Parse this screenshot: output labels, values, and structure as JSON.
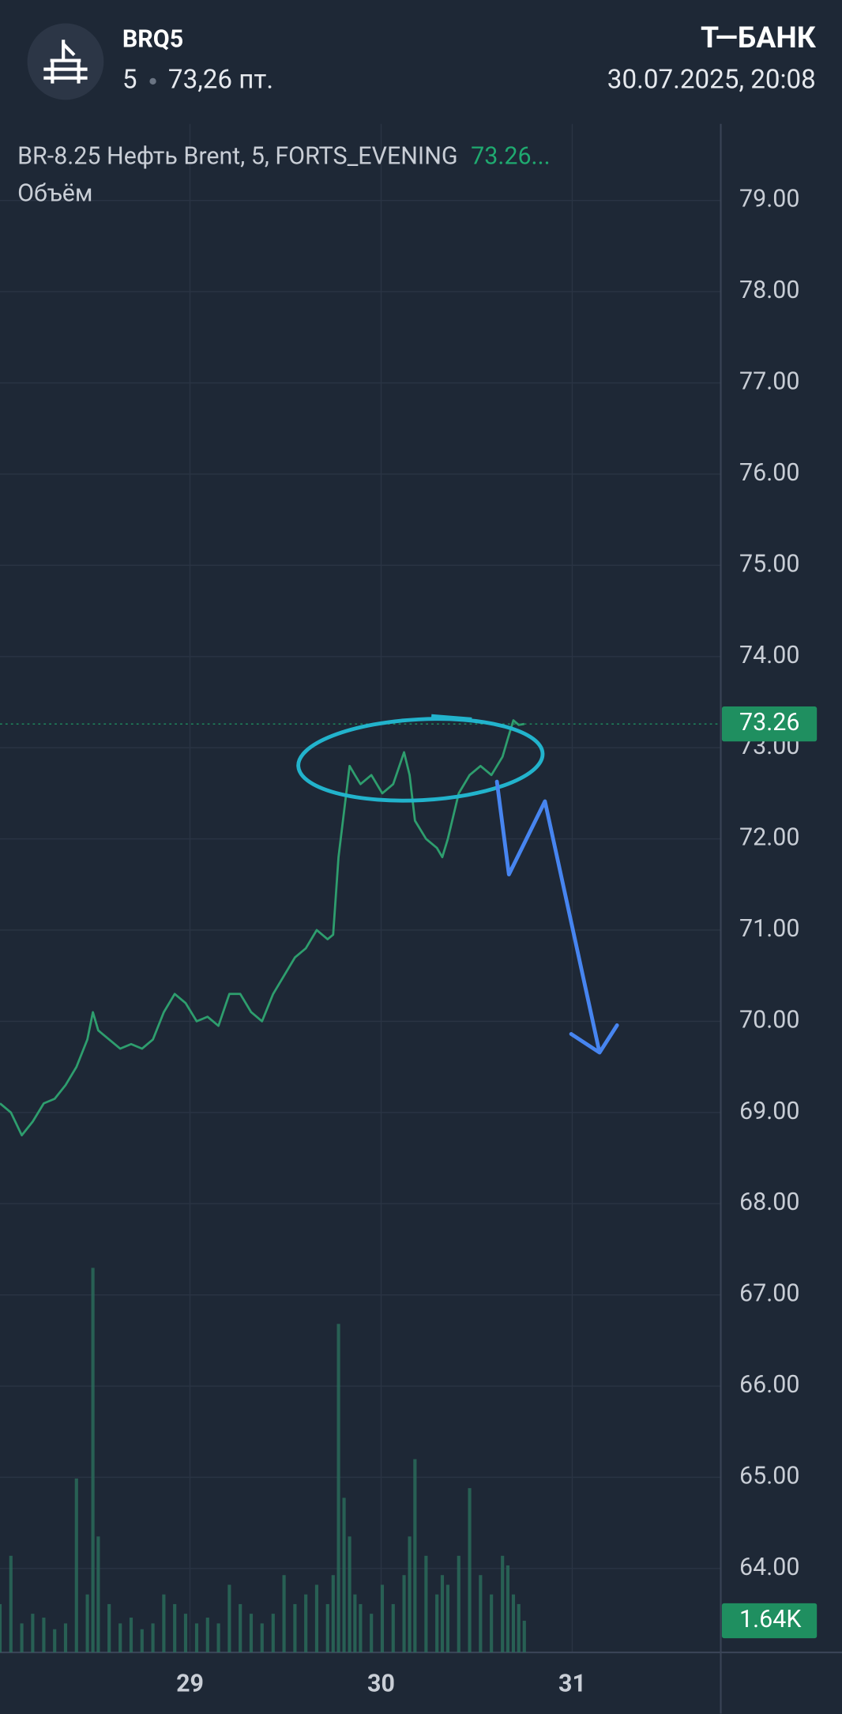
{
  "header": {
    "ticker": "BRQ5",
    "interval": "5",
    "price": "73,26 пт.",
    "brand": "Т—БАНК",
    "datetime": "30.07.2025, 20:08"
  },
  "chart_data": {
    "type": "line",
    "legend_title": "BR-8.25 Нефть Brent, 5, FORTS_EVENING",
    "legend_value": "73.26...",
    "volume_title": "Объём",
    "x": [
      28.006,
      28.063,
      28.12,
      28.177,
      28.235,
      28.292,
      28.349,
      28.406,
      28.463,
      28.492,
      28.52,
      28.577,
      28.635,
      28.692,
      28.749,
      28.806,
      28.863,
      28.92,
      28.977,
      29.035,
      29.092,
      29.149,
      29.206,
      29.263,
      29.32,
      29.377,
      29.435,
      29.492,
      29.549,
      29.606,
      29.663,
      29.72,
      29.749,
      29.777,
      29.806,
      29.835,
      29.863,
      29.892,
      29.949,
      30.006,
      30.063,
      30.12,
      30.149,
      30.177,
      30.235,
      30.292,
      30.32,
      30.349,
      30.406,
      30.463,
      30.52,
      30.577,
      30.635,
      30.663,
      30.692,
      30.72,
      30.749
    ],
    "series": [
      {
        "name": "BRQ5",
        "color": "#2e9e6e",
        "values": [
          69.1,
          69.0,
          68.75,
          68.9,
          69.1,
          69.15,
          69.3,
          69.5,
          69.8,
          70.1,
          69.9,
          69.8,
          69.7,
          69.75,
          69.7,
          69.8,
          70.1,
          70.3,
          70.2,
          70.0,
          70.05,
          69.95,
          70.3,
          70.3,
          70.1,
          70.0,
          70.3,
          70.5,
          70.7,
          70.8,
          71.0,
          70.9,
          70.95,
          71.8,
          72.3,
          72.8,
          72.7,
          72.6,
          72.7,
          72.5,
          72.6,
          72.95,
          72.7,
          72.2,
          72.0,
          71.9,
          71.8,
          72.0,
          72.5,
          72.7,
          72.8,
          72.7,
          72.9,
          73.1,
          73.3,
          73.25,
          73.26
        ]
      },
      {
        "name": "Объём",
        "color": "#2a6e5c",
        "axis": "y2",
        "values": [
          2500,
          5000,
          1500,
          2000,
          1800,
          1200,
          1500,
          9000,
          3000,
          19900,
          6000,
          2500,
          1500,
          1800,
          1200,
          1500,
          3000,
          2500,
          2000,
          1500,
          1800,
          1500,
          3500,
          2500,
          2000,
          1500,
          2000,
          4000,
          2500,
          3000,
          3500,
          2500,
          4000,
          17000,
          8000,
          6000,
          3000,
          2500,
          2000,
          3500,
          2500,
          4000,
          6000,
          10000,
          5000,
          3000,
          4000,
          3500,
          5000,
          8500,
          4000,
          3000,
          5000,
          4500,
          3000,
          2500,
          1640
        ]
      }
    ],
    "last_price": 73.26,
    "volume_tag": {
      "value": 1640,
      "label": "1.64K"
    },
    "xlim": [
      28.006,
      31.777
    ],
    "xticks": [
      29,
      30,
      31
    ],
    "ylim": [
      63.08,
      79.84
    ],
    "yticks": [
      {
        "value": 64,
        "label": "64.00"
      },
      {
        "value": 65,
        "label": "65.00"
      },
      {
        "value": 66,
        "label": "66.00"
      },
      {
        "value": 67,
        "label": "67.00"
      },
      {
        "value": 68,
        "label": "68.00"
      },
      {
        "value": 69,
        "label": "69.00"
      },
      {
        "value": 70,
        "label": "70.00"
      },
      {
        "value": 71,
        "label": "71.00"
      },
      {
        "value": 72,
        "label": "72.00"
      },
      {
        "value": 73,
        "label": "73.00"
      },
      {
        "value": 74,
        "label": "74.00"
      },
      {
        "value": 75,
        "label": "75.00"
      },
      {
        "value": 76,
        "label": "76.00"
      },
      {
        "value": 77,
        "label": "77.00"
      },
      {
        "value": 78,
        "label": "78.00"
      },
      {
        "value": 79,
        "label": "79.00"
      }
    ],
    "y2lim": [
      0,
      79100
    ],
    "grid": true,
    "tag_color": "#1f8f60"
  }
}
